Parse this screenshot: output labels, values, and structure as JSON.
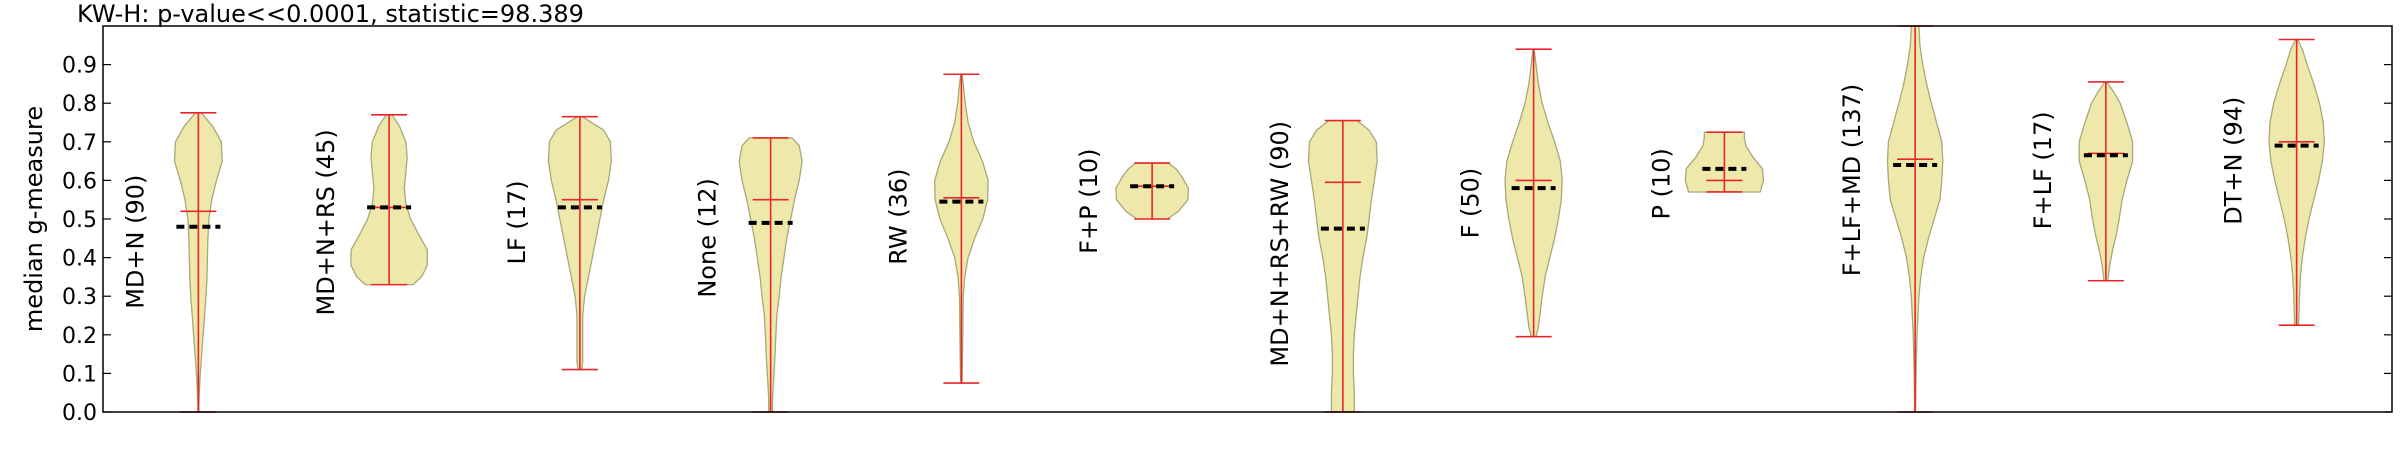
{
  "chart_data": {
    "type": "violin",
    "title": "KW-H: p-value<<0.0001, statistic=98.389",
    "ylabel": "median g-measure",
    "ylim": [
      0.0,
      1.0
    ],
    "yticks": [
      "0.0",
      "0.1",
      "0.2",
      "0.3",
      "0.4",
      "0.5",
      "0.6",
      "0.7",
      "0.8",
      "0.9"
    ],
    "grid": false,
    "colors": {
      "fill": "#eee8aa",
      "edge": "#a8a878",
      "whisker": "#e8262a",
      "median": "#000000"
    },
    "groups": [
      {
        "label": "MD+N (90)",
        "min": 0.0,
        "max": 0.775,
        "mean": 0.52,
        "median": 0.48,
        "shape": [
          [
            0.0,
            0.01
          ],
          [
            0.02,
            0.01
          ],
          [
            0.05,
            0.02
          ],
          [
            0.1,
            0.04
          ],
          [
            0.15,
            0.07
          ],
          [
            0.2,
            0.1
          ],
          [
            0.25,
            0.13
          ],
          [
            0.3,
            0.16
          ],
          [
            0.35,
            0.18
          ],
          [
            0.4,
            0.19
          ],
          [
            0.45,
            0.2
          ],
          [
            0.5,
            0.22
          ],
          [
            0.55,
            0.28
          ],
          [
            0.6,
            0.38
          ],
          [
            0.65,
            0.5
          ],
          [
            0.7,
            0.48
          ],
          [
            0.74,
            0.3
          ],
          [
            0.775,
            0.06
          ]
        ]
      },
      {
        "label": "MD+N+RS (45)",
        "min": 0.33,
        "max": 0.77,
        "mean": 0.53,
        "median": 0.53,
        "shape": [
          [
            0.33,
            0.5
          ],
          [
            0.35,
            0.68
          ],
          [
            0.38,
            0.8
          ],
          [
            0.42,
            0.8
          ],
          [
            0.46,
            0.62
          ],
          [
            0.5,
            0.45
          ],
          [
            0.54,
            0.35
          ],
          [
            0.58,
            0.32
          ],
          [
            0.62,
            0.35
          ],
          [
            0.66,
            0.38
          ],
          [
            0.7,
            0.35
          ],
          [
            0.74,
            0.22
          ],
          [
            0.77,
            0.06
          ]
        ]
      },
      {
        "label": "LF (17)",
        "min": 0.11,
        "max": 0.765,
        "mean": 0.55,
        "median": 0.53,
        "shape": [
          [
            0.11,
            0.04
          ],
          [
            0.13,
            0.06
          ],
          [
            0.2,
            0.06
          ],
          [
            0.25,
            0.06
          ],
          [
            0.3,
            0.1
          ],
          [
            0.35,
            0.18
          ],
          [
            0.4,
            0.26
          ],
          [
            0.45,
            0.34
          ],
          [
            0.5,
            0.42
          ],
          [
            0.55,
            0.5
          ],
          [
            0.6,
            0.6
          ],
          [
            0.65,
            0.66
          ],
          [
            0.7,
            0.64
          ],
          [
            0.73,
            0.5
          ],
          [
            0.765,
            0.05
          ]
        ]
      },
      {
        "label": "None (12)",
        "min": 0.0,
        "max": 0.71,
        "mean": 0.55,
        "median": 0.49,
        "shape": [
          [
            0.0,
            0.04
          ],
          [
            0.03,
            0.04
          ],
          [
            0.06,
            0.05
          ],
          [
            0.1,
            0.07
          ],
          [
            0.14,
            0.09
          ],
          [
            0.2,
            0.11
          ],
          [
            0.25,
            0.13
          ],
          [
            0.3,
            0.18
          ],
          [
            0.35,
            0.22
          ],
          [
            0.4,
            0.28
          ],
          [
            0.45,
            0.34
          ],
          [
            0.5,
            0.42
          ],
          [
            0.55,
            0.5
          ],
          [
            0.6,
            0.6
          ],
          [
            0.65,
            0.66
          ],
          [
            0.69,
            0.6
          ],
          [
            0.71,
            0.45
          ]
        ]
      },
      {
        "label": "RW (36)",
        "min": 0.075,
        "max": 0.875,
        "mean": 0.555,
        "median": 0.545,
        "shape": [
          [
            0.075,
            0.01
          ],
          [
            0.1,
            0.02
          ],
          [
            0.2,
            0.03
          ],
          [
            0.3,
            0.04
          ],
          [
            0.35,
            0.07
          ],
          [
            0.4,
            0.14
          ],
          [
            0.45,
            0.28
          ],
          [
            0.5,
            0.45
          ],
          [
            0.55,
            0.55
          ],
          [
            0.6,
            0.56
          ],
          [
            0.65,
            0.44
          ],
          [
            0.7,
            0.26
          ],
          [
            0.75,
            0.14
          ],
          [
            0.8,
            0.08
          ],
          [
            0.85,
            0.04
          ],
          [
            0.875,
            0.01
          ]
        ]
      },
      {
        "label": "F+P (10)",
        "min": 0.5,
        "max": 0.645,
        "mean": 0.585,
        "median": 0.585,
        "shape": [
          [
            0.5,
            0.32
          ],
          [
            0.52,
            0.55
          ],
          [
            0.55,
            0.75
          ],
          [
            0.58,
            0.76
          ],
          [
            0.61,
            0.62
          ],
          [
            0.63,
            0.5
          ],
          [
            0.645,
            0.34
          ]
        ]
      },
      {
        "label": "MD+N+RS+RW (90)",
        "min": 0.0,
        "max": 0.755,
        "mean": 0.595,
        "median": 0.475,
        "shape": [
          [
            0.0,
            0.24
          ],
          [
            0.05,
            0.24
          ],
          [
            0.1,
            0.22
          ],
          [
            0.15,
            0.22
          ],
          [
            0.2,
            0.24
          ],
          [
            0.25,
            0.28
          ],
          [
            0.3,
            0.32
          ],
          [
            0.35,
            0.36
          ],
          [
            0.4,
            0.42
          ],
          [
            0.45,
            0.5
          ],
          [
            0.5,
            0.55
          ],
          [
            0.55,
            0.6
          ],
          [
            0.6,
            0.66
          ],
          [
            0.65,
            0.72
          ],
          [
            0.7,
            0.7
          ],
          [
            0.73,
            0.55
          ],
          [
            0.755,
            0.3
          ]
        ]
      },
      {
        "label": "F (50)",
        "min": 0.195,
        "max": 0.94,
        "mean": 0.6,
        "median": 0.58,
        "shape": [
          [
            0.195,
            0.05
          ],
          [
            0.22,
            0.1
          ],
          [
            0.26,
            0.14
          ],
          [
            0.3,
            0.18
          ],
          [
            0.35,
            0.24
          ],
          [
            0.4,
            0.34
          ],
          [
            0.45,
            0.44
          ],
          [
            0.5,
            0.52
          ],
          [
            0.55,
            0.58
          ],
          [
            0.6,
            0.6
          ],
          [
            0.65,
            0.56
          ],
          [
            0.7,
            0.44
          ],
          [
            0.75,
            0.3
          ],
          [
            0.8,
            0.18
          ],
          [
            0.85,
            0.1
          ],
          [
            0.9,
            0.05
          ],
          [
            0.94,
            0.01
          ]
        ]
      },
      {
        "label": "P (10)",
        "min": 0.57,
        "max": 0.725,
        "mean": 0.6,
        "median": 0.63,
        "shape": [
          [
            0.57,
            0.75
          ],
          [
            0.6,
            0.82
          ],
          [
            0.63,
            0.8
          ],
          [
            0.66,
            0.6
          ],
          [
            0.69,
            0.45
          ],
          [
            0.71,
            0.42
          ],
          [
            0.725,
            0.42
          ]
        ]
      },
      {
        "label": "F+LF+MD (137)",
        "min": 0.0,
        "max": 1.0,
        "mean": 0.655,
        "median": 0.64,
        "shape": [
          [
            0.0,
            0.01
          ],
          [
            0.1,
            0.02
          ],
          [
            0.2,
            0.04
          ],
          [
            0.3,
            0.08
          ],
          [
            0.35,
            0.12
          ],
          [
            0.4,
            0.18
          ],
          [
            0.45,
            0.28
          ],
          [
            0.5,
            0.4
          ],
          [
            0.55,
            0.52
          ],
          [
            0.6,
            0.56
          ],
          [
            0.65,
            0.58
          ],
          [
            0.7,
            0.56
          ],
          [
            0.75,
            0.45
          ],
          [
            0.8,
            0.34
          ],
          [
            0.85,
            0.24
          ],
          [
            0.9,
            0.16
          ],
          [
            0.95,
            0.1
          ],
          [
            1.0,
            0.08
          ]
        ]
      },
      {
        "label": "F+LF (17)",
        "min": 0.34,
        "max": 0.855,
        "mean": 0.67,
        "median": 0.665,
        "shape": [
          [
            0.34,
            0.04
          ],
          [
            0.38,
            0.08
          ],
          [
            0.42,
            0.14
          ],
          [
            0.46,
            0.22
          ],
          [
            0.5,
            0.28
          ],
          [
            0.55,
            0.34
          ],
          [
            0.6,
            0.44
          ],
          [
            0.65,
            0.56
          ],
          [
            0.7,
            0.56
          ],
          [
            0.75,
            0.44
          ],
          [
            0.8,
            0.3
          ],
          [
            0.83,
            0.16
          ],
          [
            0.855,
            0.02
          ]
        ]
      },
      {
        "label": "DT+N (94)",
        "min": 0.225,
        "max": 0.965,
        "mean": 0.7,
        "median": 0.69,
        "shape": [
          [
            0.225,
            0.04
          ],
          [
            0.3,
            0.06
          ],
          [
            0.35,
            0.08
          ],
          [
            0.4,
            0.12
          ],
          [
            0.45,
            0.18
          ],
          [
            0.5,
            0.26
          ],
          [
            0.55,
            0.36
          ],
          [
            0.6,
            0.46
          ],
          [
            0.65,
            0.54
          ],
          [
            0.7,
            0.58
          ],
          [
            0.75,
            0.56
          ],
          [
            0.8,
            0.48
          ],
          [
            0.85,
            0.36
          ],
          [
            0.9,
            0.22
          ],
          [
            0.94,
            0.12
          ],
          [
            0.965,
            0.02
          ]
        ]
      }
    ]
  }
}
